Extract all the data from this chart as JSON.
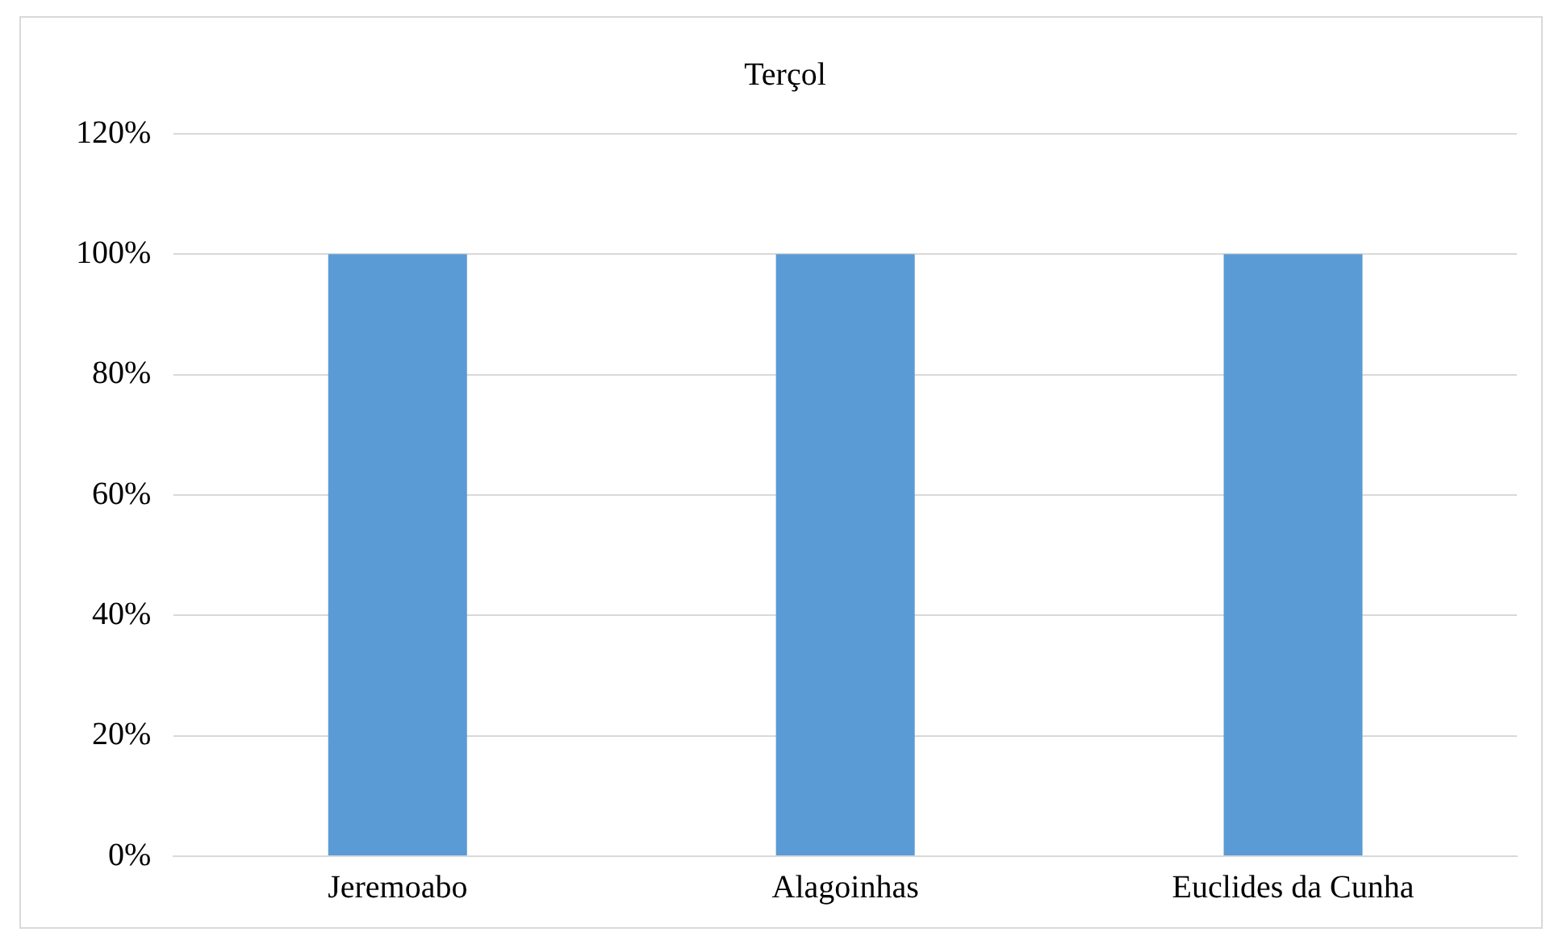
{
  "chart_data": {
    "type": "bar",
    "title": "Terçol",
    "categories": [
      "Jeremoabo",
      "Alagoinhas",
      "Euclides da Cunha"
    ],
    "values": [
      100,
      100,
      100
    ],
    "color": "#5b9bd5",
    "ylim": [
      0,
      120
    ],
    "yticks": [
      {
        "value": 0,
        "label": "0%"
      },
      {
        "value": 20,
        "label": "20%"
      },
      {
        "value": 40,
        "label": "40%"
      },
      {
        "value": 60,
        "label": "60%"
      },
      {
        "value": 80,
        "label": "80%"
      },
      {
        "value": 100,
        "label": "100%"
      },
      {
        "value": 120,
        "label": "120%"
      }
    ],
    "grid": "y",
    "legend": false
  }
}
